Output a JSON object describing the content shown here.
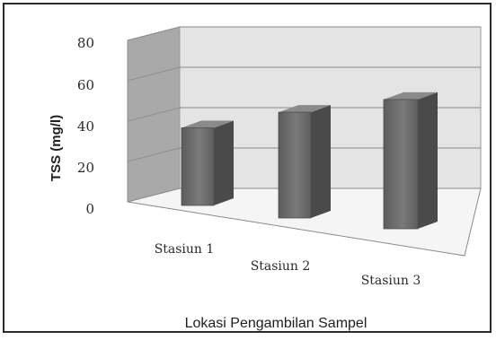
{
  "chart_data": {
    "type": "bar",
    "style": "3d",
    "categories": [
      "Stasiun 1",
      "Stasiun 2",
      "Stasiun 3"
    ],
    "values": [
      33,
      45,
      55
    ],
    "ylabel": "TSS (mg/l)",
    "xlabel": "Lokasi Pengambilan Sampel",
    "ylim": [
      0,
      80
    ],
    "yticks": [
      0,
      20,
      40,
      60,
      80
    ],
    "grid": true,
    "legend": "none",
    "colors": {
      "bar": "#6a6a6a",
      "wall": "#e4e4e4",
      "side_wall": "#a9a9a9",
      "floor": "#f4f4f4",
      "grid": "#8a8a8a"
    }
  }
}
